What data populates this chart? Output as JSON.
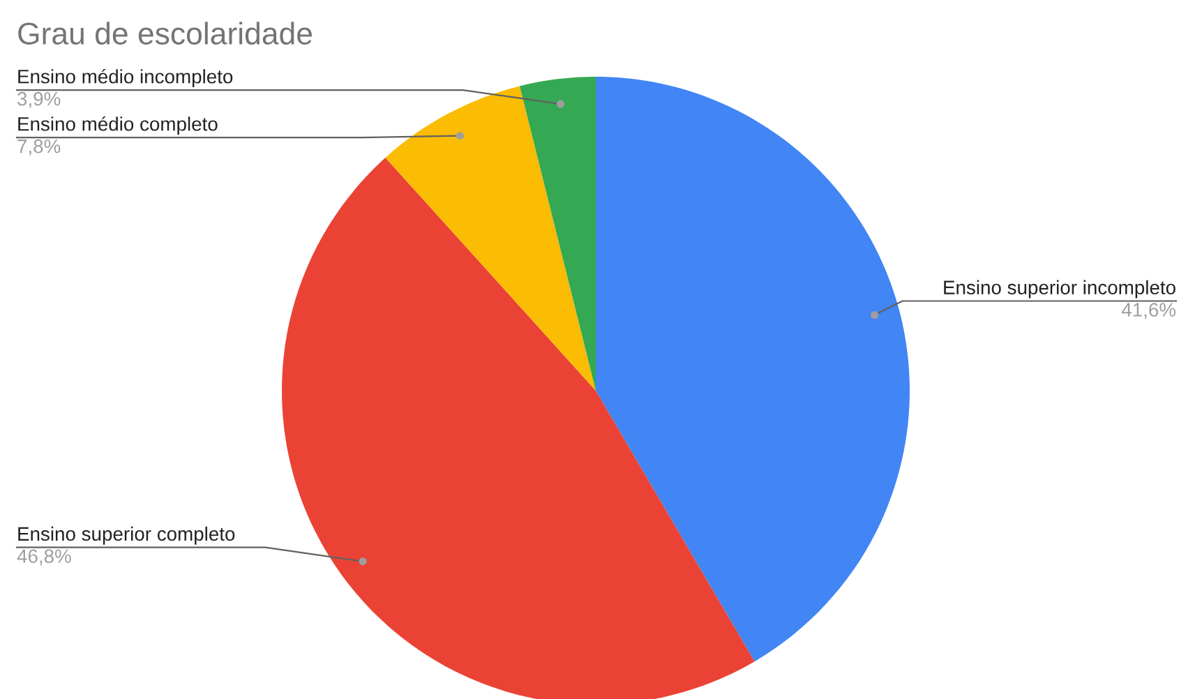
{
  "chart_data": {
    "type": "pie",
    "title": "Grau de escolaridade",
    "categories": [
      "Ensino superior incompleto",
      "Ensino superior completo",
      "Ensino médio completo",
      "Ensino médio incompleto"
    ],
    "values": [
      41.6,
      46.8,
      7.8,
      3.9
    ],
    "value_labels": [
      "41,6%",
      "46,8%",
      "7,8%",
      "3,9%"
    ],
    "colors": [
      "#4285f4",
      "#ea4335",
      "#fbbc04",
      "#34a853"
    ],
    "legend": false
  }
}
